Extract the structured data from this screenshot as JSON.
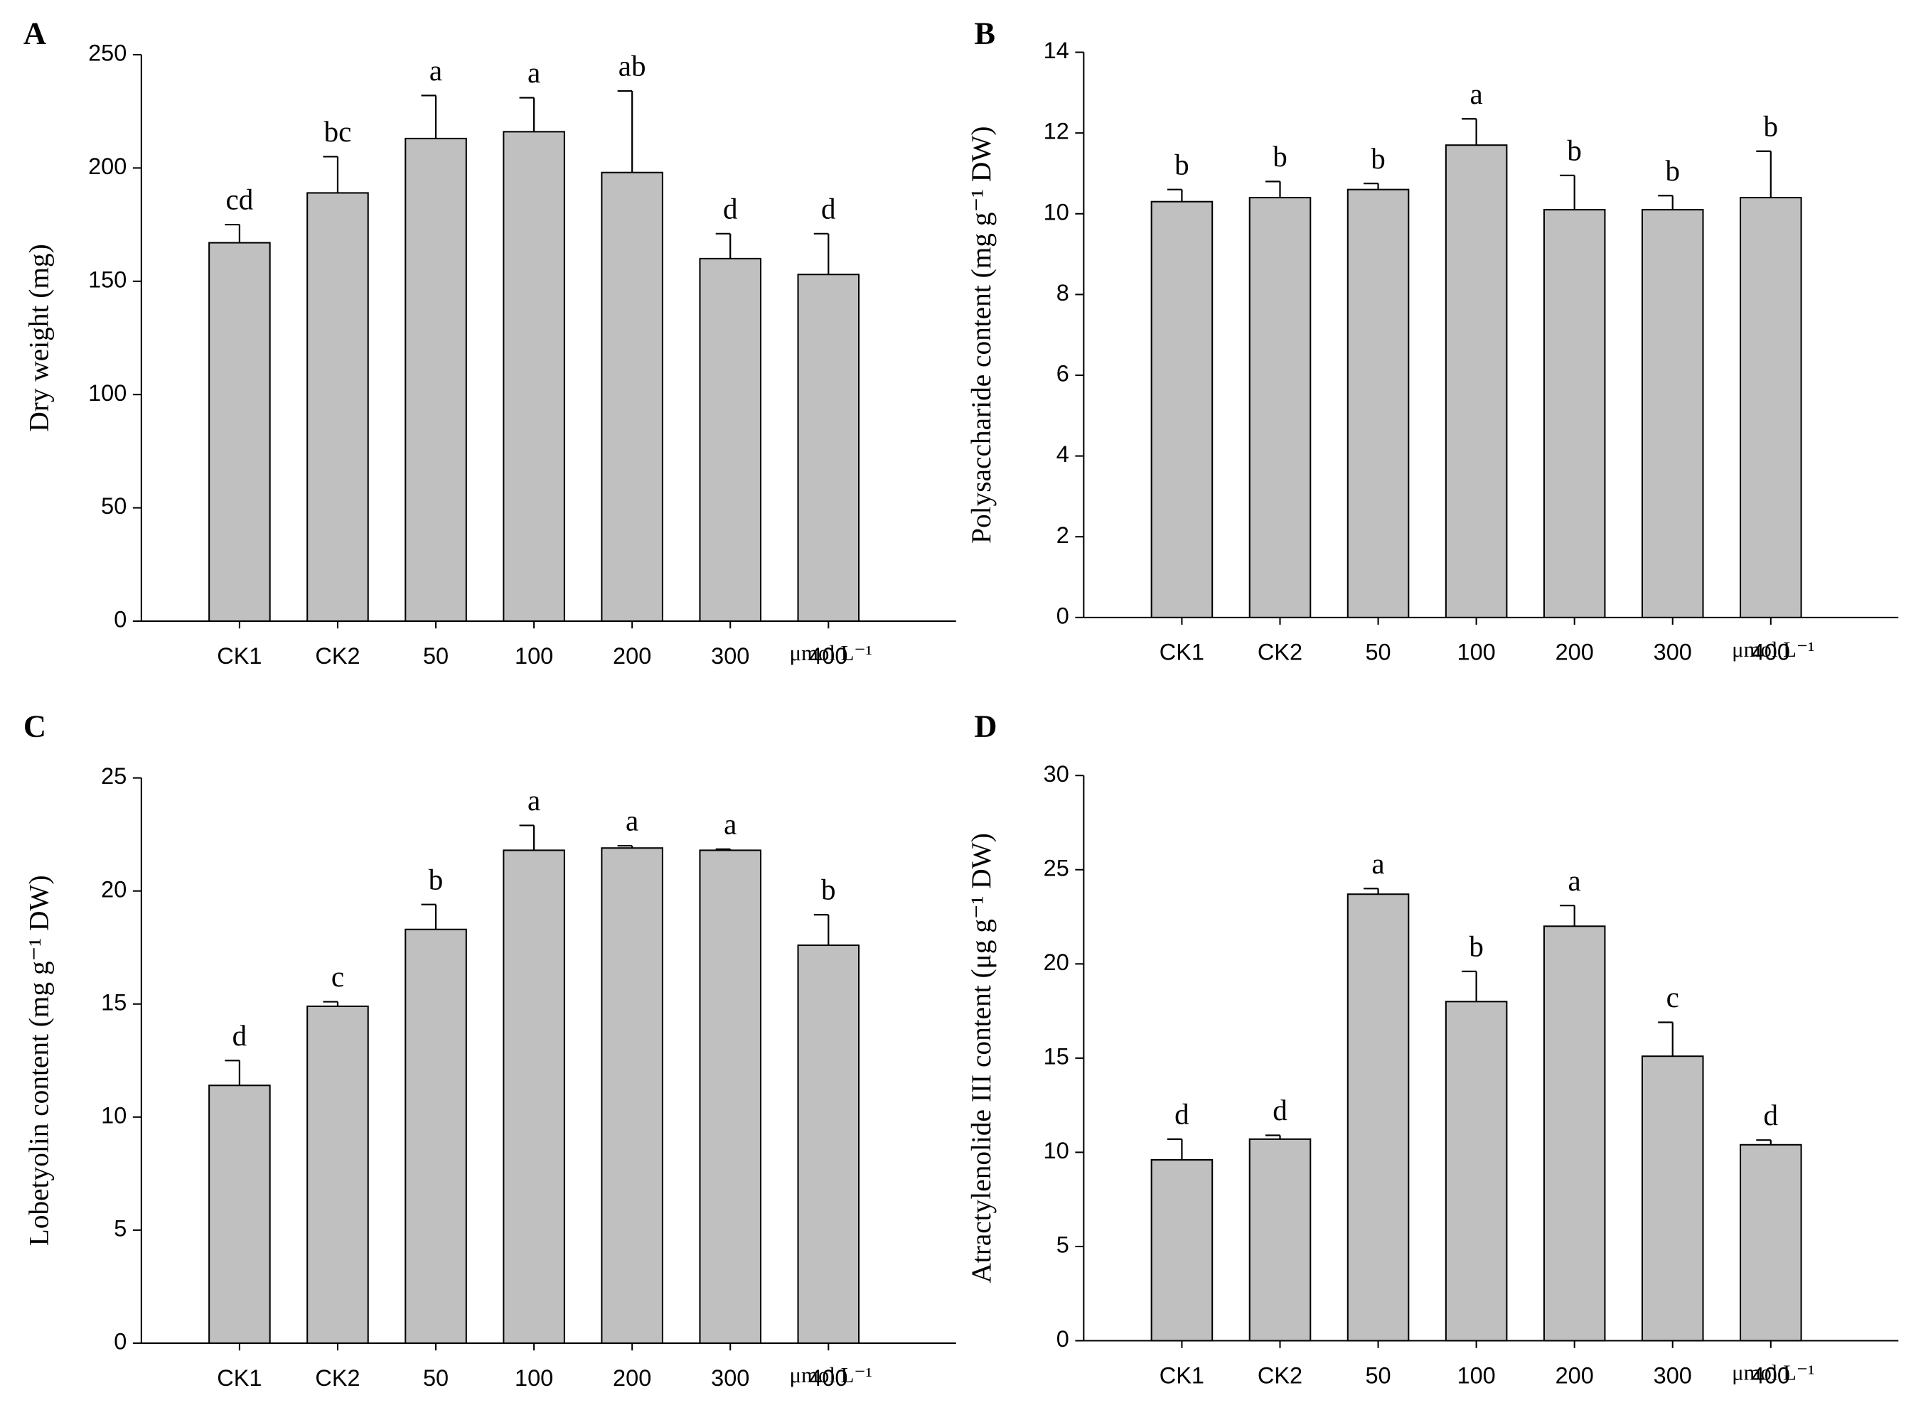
{
  "chart_data": [
    {
      "type": "bar",
      "panel": "A",
      "y_label": "Dry weight  (mg)",
      "x_unit": "μmol L⁻¹",
      "categories": [
        "CK1",
        "CK2",
        "50",
        "100",
        "200",
        "300",
        "400"
      ],
      "values": [
        167,
        189,
        213,
        216,
        198,
        160,
        153
      ],
      "errors": [
        8,
        16,
        19,
        15,
        36,
        11,
        18
      ],
      "annotations": [
        "cd",
        "bc",
        "a",
        "a",
        "ab",
        "d",
        "d"
      ],
      "color": "#c0c0c0",
      "ylim": [
        0,
        250
      ],
      "yticks": [
        0,
        50,
        100,
        150,
        200,
        250
      ]
    },
    {
      "type": "bar",
      "panel": "B",
      "y_label": "Polysaccharide content (mg g⁻¹ DW)",
      "x_unit": "μmol L⁻¹",
      "categories": [
        "CK1",
        "CK2",
        "50",
        "100",
        "200",
        "300",
        "400"
      ],
      "values": [
        10.3,
        10.4,
        10.6,
        11.7,
        10.1,
        10.1,
        10.4
      ],
      "errors": [
        0.3,
        0.4,
        0.15,
        0.65,
        0.85,
        0.35,
        1.15
      ],
      "annotations": [
        "b",
        "b",
        "b",
        "a",
        "b",
        "b",
        "b"
      ],
      "color": "#c0c0c0",
      "ylim": [
        0,
        14
      ],
      "yticks": [
        0,
        2,
        4,
        6,
        8,
        10,
        12,
        14
      ]
    },
    {
      "type": "bar",
      "panel": "C",
      "y_label": "Lobetyolin content (mg g⁻¹ DW)",
      "x_unit": "μmol L⁻¹",
      "categories": [
        "CK1",
        "CK2",
        "50",
        "100",
        "200",
        "300",
        "400"
      ],
      "values": [
        11.4,
        14.9,
        18.3,
        21.8,
        21.9,
        21.8,
        17.6
      ],
      "errors": [
        1.1,
        0.2,
        1.1,
        1.1,
        0.1,
        0.05,
        1.35
      ],
      "annotations": [
        "d",
        "c",
        "b",
        "a",
        "a",
        "a",
        "b"
      ],
      "color": "#c0c0c0",
      "ylim": [
        0,
        25
      ],
      "yticks": [
        0,
        5,
        10,
        15,
        20,
        25
      ]
    },
    {
      "type": "bar",
      "panel": "D",
      "y_label": "Atractylenolide III content (μg g⁻¹ DW)",
      "x_unit": "μmol L⁻¹",
      "categories": [
        "CK1",
        "CK2",
        "50",
        "100",
        "200",
        "300",
        "400"
      ],
      "values": [
        9.6,
        10.7,
        23.7,
        18,
        22,
        15.1,
        10.4
      ],
      "errors": [
        1.1,
        0.2,
        0.3,
        1.6,
        1.1,
        1.8,
        0.25
      ],
      "annotations": [
        "d",
        "d",
        "a",
        "b",
        "a",
        "c",
        "d"
      ],
      "color": "#c0c0c0",
      "ylim": [
        0,
        30
      ],
      "yticks": [
        0,
        5,
        10,
        15,
        20,
        25,
        30
      ]
    }
  ]
}
